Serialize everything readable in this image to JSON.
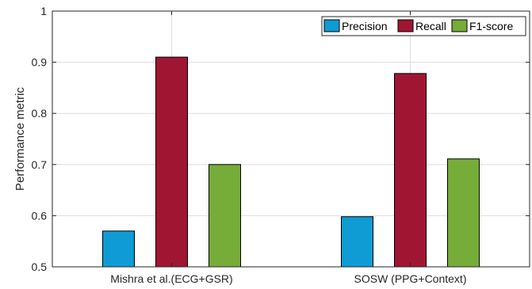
{
  "chart_data": {
    "type": "bar",
    "title": "",
    "xlabel": "",
    "ylabel": "Performance metric",
    "ylim": [
      0.5,
      1.0
    ],
    "yticks": [
      "0.5",
      "0.6",
      "0.7",
      "0.8",
      "0.9",
      "1"
    ],
    "ytick_values": [
      0.5,
      0.6,
      0.7,
      0.8,
      0.9,
      1.0
    ],
    "grid": true,
    "legend_position": "top-right",
    "categories": [
      "Mishra et al.(ECG+GSR)",
      "SOSW (PPG+Context)"
    ],
    "series": [
      {
        "name": "Precision",
        "color": "#0f9bd3",
        "values": [
          0.57,
          0.598
        ]
      },
      {
        "name": "Recall",
        "color": "#a01632",
        "values": [
          0.91,
          0.878
        ]
      },
      {
        "name": "F1-score",
        "color": "#76ac38",
        "values": [
          0.7,
          0.711
        ]
      }
    ]
  }
}
